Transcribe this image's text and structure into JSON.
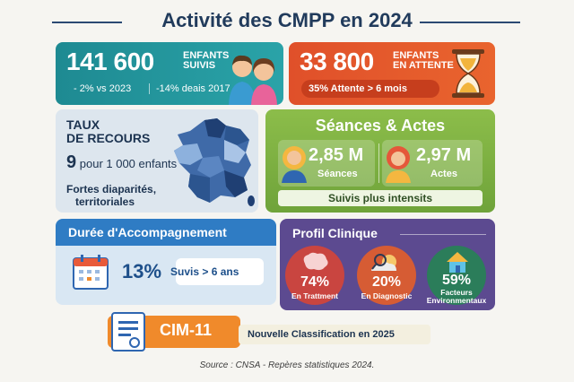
{
  "title": "Activité des CMPP en 2024",
  "colors": {
    "teal": "#1e8a92",
    "orange": "#e0502a",
    "green": "#7ab244",
    "blue": "#2f7cc4",
    "purple": "#5c4a90",
    "cim": "#f08a2b"
  },
  "enfants": {
    "value": "141 600",
    "label_line1": "ENFANTS",
    "label_line2": "SUIVIS",
    "delta1": "- 2% vs 2023",
    "delta2": "-14% deais 2017",
    "icon": "children-icon"
  },
  "attente": {
    "value": "33 800",
    "label_line1": "ENFANTS",
    "label_line2": "EN ATTENTE",
    "sub": "35% Attente > 6 mois",
    "icon": "hourglass-icon"
  },
  "taux": {
    "title_line1": "TAUX",
    "title_line2": "DE RECOURS",
    "value": "9",
    "value_suffix": "pour 1 000 enfants",
    "note_line1": "Fortes diaparités,",
    "note_line2": "territoriales",
    "icon": "france-map-icon"
  },
  "seances": {
    "title": "Séances & Actes",
    "seances_value": "2,85 M",
    "seances_label": "Séances",
    "actes_value": "2,97 M",
    "actes_label": "Actes",
    "footer": "Suivis plus intensits"
  },
  "duree": {
    "title": "Durée d'Accompagnement",
    "value": "13%",
    "label": "Suvis > 6 ans",
    "icon": "calendar-icon"
  },
  "profil": {
    "title": "Profil Clinique",
    "items": [
      {
        "value": "74%",
        "label_line1": "En Trattment",
        "label_line2": "",
        "color": "#d9534f",
        "icon": "brain-icon"
      },
      {
        "value": "20%",
        "label_line1": "En Diagnostic",
        "label_line2": "",
        "color": "#e36b3a",
        "icon": "magnifier-icon"
      },
      {
        "value": "59%",
        "label_line1": "Facteurs",
        "label_line2": "Environmentaux",
        "color": "#2f8a62",
        "icon": "house-icon"
      }
    ]
  },
  "cim": {
    "title": "CIM-11",
    "text": "Nouvelle Classification en 2025",
    "icon": "document-icon"
  },
  "source": "Source : CNSA - Repères statistiques 2024."
}
